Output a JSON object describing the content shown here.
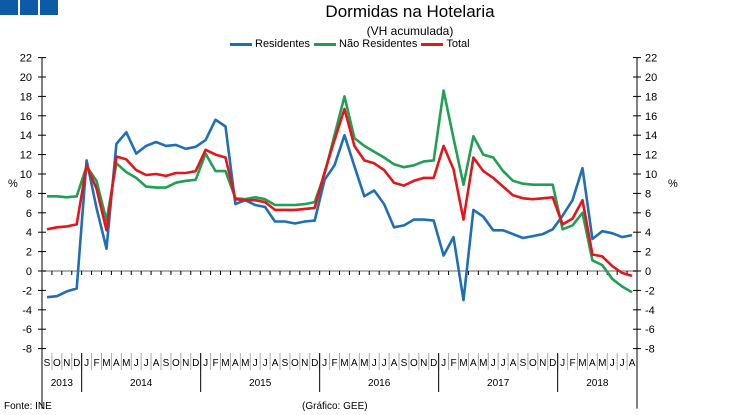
{
  "header": {
    "title": "Dormidas na Hotelaria",
    "subtitle": "(VH acumulada)"
  },
  "footer": {
    "source": "Fonte: INE",
    "credit": "(Gráfico: GEE)"
  },
  "colors": {
    "logo": "#0d5aa7"
  },
  "chart_data": {
    "type": "line",
    "title": "Dormidas na Hotelaria",
    "subtitle": "(VH acumulada)",
    "ylabel": "%",
    "ylabel_right": "%",
    "ylim": [
      -8,
      22
    ],
    "yticks": [
      -8,
      -6,
      -4,
      -2,
      0,
      2,
      4,
      6,
      8,
      10,
      12,
      14,
      16,
      18,
      20,
      22
    ],
    "legend_position": "top-center",
    "month_labels": [
      "S",
      "O",
      "N",
      "D",
      "J",
      "F",
      "M",
      "A",
      "M",
      "J",
      "J",
      "A",
      "S",
      "O",
      "N",
      "D",
      "J",
      "F",
      "M",
      "A",
      "M",
      "J",
      "J",
      "A",
      "S",
      "O",
      "N",
      "D",
      "J",
      "F",
      "M",
      "A",
      "M",
      "J",
      "J",
      "A",
      "S",
      "O",
      "N",
      "D",
      "J",
      "F",
      "M",
      "A",
      "M",
      "J",
      "J",
      "A",
      "S",
      "O",
      "N",
      "D",
      "J",
      "F",
      "M",
      "A",
      "M",
      "J",
      "J",
      "A"
    ],
    "years": [
      {
        "label": "2013",
        "months": 4
      },
      {
        "label": "2014",
        "months": 12
      },
      {
        "label": "2015",
        "months": 12
      },
      {
        "label": "2016",
        "months": 12
      },
      {
        "label": "2017",
        "months": 12
      },
      {
        "label": "2018",
        "months": 8
      }
    ],
    "series": [
      {
        "name": "Residentes",
        "color": "#1f6fb5",
        "values": [
          -2.7,
          -2.6,
          -2.1,
          -1.8,
          11.4,
          6.5,
          2.3,
          13.1,
          14.3,
          12.1,
          12.9,
          13.3,
          12.9,
          13.0,
          12.6,
          12.8,
          13.5,
          15.6,
          14.9,
          6.9,
          7.3,
          6.8,
          6.6,
          5.1,
          5.1,
          4.9,
          5.1,
          5.2,
          9.4,
          10.9,
          14.0,
          10.8,
          7.7,
          8.3,
          6.9,
          4.5,
          4.7,
          5.3,
          5.3,
          5.2,
          1.6,
          3.5,
          -3.0,
          6.3,
          5.6,
          4.2,
          4.2,
          3.8,
          3.4,
          3.6,
          3.8,
          4.3,
          5.7,
          7.3,
          10.6,
          3.3,
          4.1,
          3.9,
          3.5,
          3.7
        ]
      },
      {
        "name": "Não Residentes",
        "color": "#1fa053",
        "values": [
          7.7,
          7.7,
          7.6,
          7.7,
          10.8,
          9.3,
          5.2,
          11.1,
          10.2,
          9.6,
          8.7,
          8.6,
          8.6,
          9.1,
          9.3,
          9.4,
          12.1,
          10.3,
          10.3,
          7.5,
          7.4,
          7.6,
          7.4,
          6.8,
          6.8,
          6.8,
          6.9,
          7.1,
          10.0,
          14.0,
          18.0,
          13.7,
          12.9,
          12.3,
          11.7,
          11.0,
          10.7,
          10.9,
          11.3,
          11.4,
          18.6,
          13.7,
          8.9,
          13.9,
          12.0,
          11.7,
          10.3,
          9.3,
          9.0,
          8.9,
          8.9,
          8.9,
          4.3,
          4.7,
          6.0,
          1.1,
          0.6,
          -0.8,
          -1.6,
          -2.2
        ]
      },
      {
        "name": "Total",
        "color": "#e3161b",
        "values": [
          4.3,
          4.5,
          4.6,
          4.8,
          10.9,
          8.5,
          4.2,
          11.8,
          11.5,
          10.4,
          9.9,
          10.0,
          9.8,
          10.1,
          10.1,
          10.3,
          12.5,
          12.0,
          11.7,
          7.4,
          7.3,
          7.3,
          7.1,
          6.3,
          6.3,
          6.3,
          6.4,
          6.5,
          10.2,
          13.5,
          16.7,
          12.9,
          11.4,
          11.1,
          10.4,
          9.1,
          8.8,
          9.3,
          9.6,
          9.6,
          12.9,
          10.5,
          5.3,
          11.7,
          10.3,
          9.6,
          8.7,
          7.8,
          7.5,
          7.4,
          7.5,
          7.6,
          4.8,
          5.4,
          7.3,
          1.7,
          1.5,
          0.5,
          -0.2,
          -0.5
        ]
      }
    ]
  }
}
